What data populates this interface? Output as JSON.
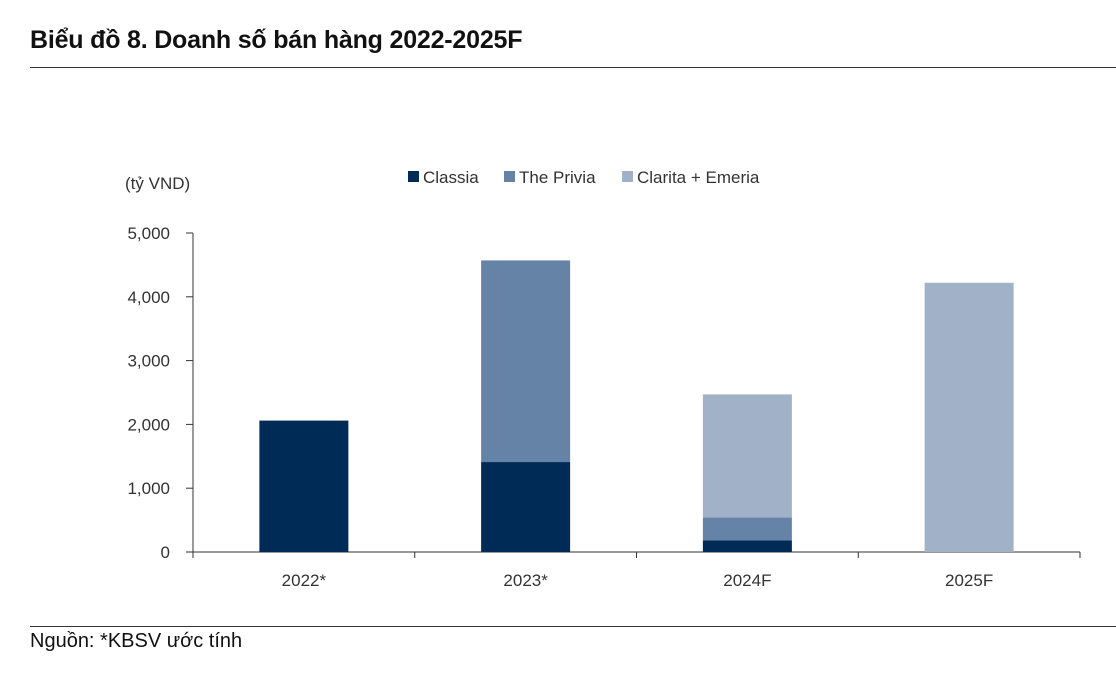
{
  "title": "Biểu đồ 8. Doanh số bán hàng 2022-2025F",
  "source": "Nguồn: *KBSV ước tính",
  "colors": {
    "Classia": "#002b56",
    "The Privia": "#6483a7",
    "Clarita + Emeria": "#a1b1c8",
    "axis": "#333333"
  },
  "chart_data": {
    "type": "bar",
    "stacked": true,
    "ylabel": "(tỷ VND)",
    "xlabel": "",
    "ylim": [
      0,
      5000
    ],
    "yticks": [
      0,
      1000,
      2000,
      3000,
      4000,
      5000
    ],
    "ytick_labels": [
      "0",
      "1,000",
      "2,000",
      "3,000",
      "4,000",
      "5,000"
    ],
    "categories": [
      "2022*",
      "2023*",
      "2024F",
      "2025F"
    ],
    "legend_position": "top",
    "grid": false,
    "series": [
      {
        "name": "Classia",
        "values": [
          2060,
          1410,
          180,
          0
        ]
      },
      {
        "name": "The Privia",
        "values": [
          0,
          3160,
          360,
          0
        ]
      },
      {
        "name": "Clarita + Emeria",
        "values": [
          0,
          0,
          1930,
          4220
        ]
      }
    ]
  }
}
